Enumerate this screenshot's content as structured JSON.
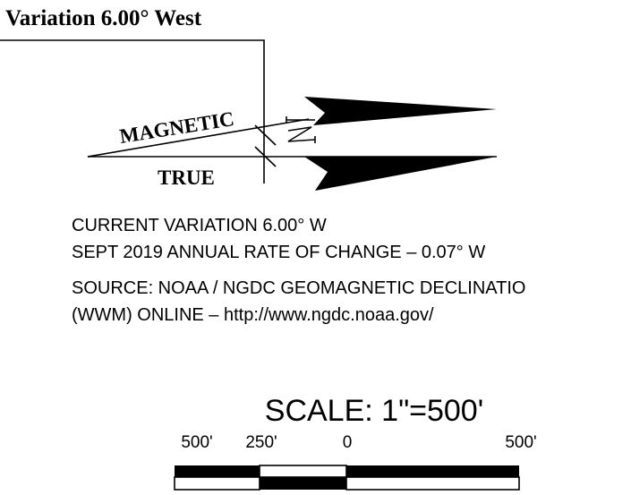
{
  "title": "Variation 6.00° West",
  "diagram": {
    "magnetic_label": "MAGNETIC",
    "true_label": "TRUE"
  },
  "notes": [
    "CURRENT VARIATION 6.00° W",
    "SEPT 2019 ANNUAL RATE OF CHANGE – 0.07° W",
    "SOURCE: NOAA / NGDC GEOMAGNETIC DECLINATIO",
    "(WWM) ONLINE – http://www.ngdc.noaa.gov/"
  ],
  "scale": {
    "title": "SCALE: 1\"=500'",
    "labels": [
      "500'",
      "250'",
      "0",
      "500'"
    ]
  }
}
